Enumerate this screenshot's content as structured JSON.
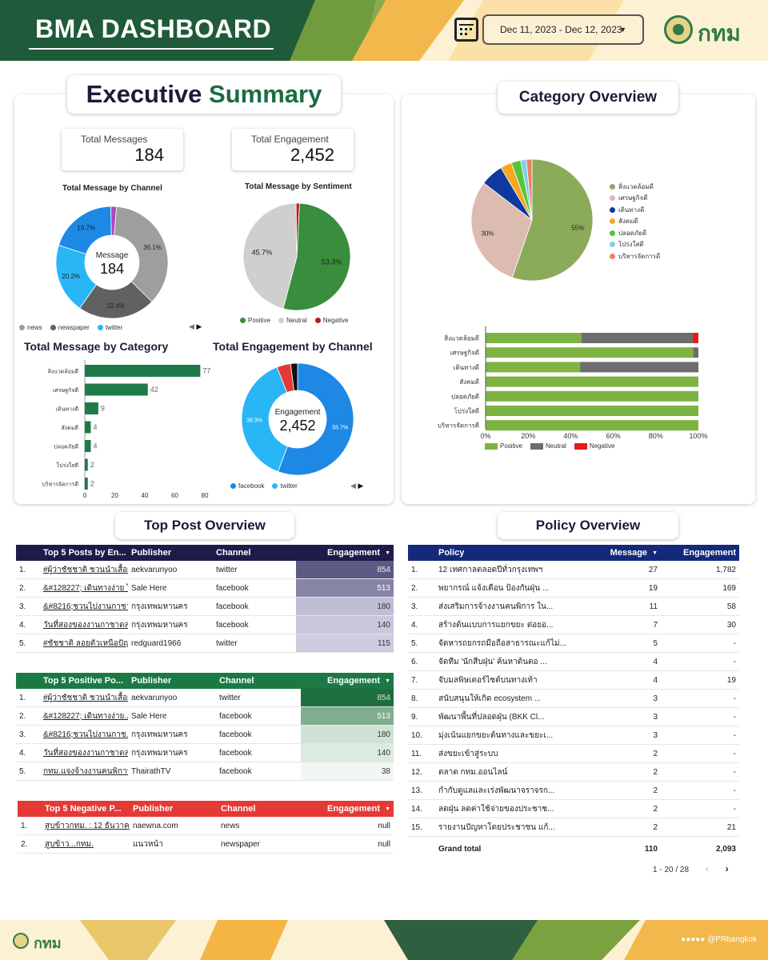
{
  "header": {
    "title": "BMA DASHBOARD",
    "date_range": "Dec 11, 2023 - Dec 12, 2023",
    "logo_text": "กทม"
  },
  "executive_summary": {
    "title_part1": "Executive",
    "title_part2": "Summary",
    "kpis": {
      "total_messages_label": "Total Messages",
      "total_messages_value": "184",
      "total_engagement_label": "Total Engagement",
      "total_engagement_value": "2,452"
    }
  },
  "category_overview": {
    "title": "Category Overview"
  },
  "top_post_overview": {
    "title": "Top Post Overview"
  },
  "policy_overview": {
    "title": "Policy Overview"
  },
  "colors": {
    "news": "#9e9e9e",
    "newspaper": "#616161",
    "twitter": "#29b6f6",
    "facebook": "#1e88e5",
    "positive": "#388e3c",
    "neutral": "#cfcfcf",
    "negative": "#b71c1c",
    "cat_bar": "#1f7a4a",
    "top_header": "#1e1b4b",
    "pos_header": "#1b7a44",
    "neg_header": "#e53935",
    "policy_header": "#14297a"
  },
  "chart_data": [
    {
      "id": "msg_by_channel",
      "type": "pie",
      "title": "Total Message by Channel",
      "center_label": "Message",
      "center_value": "184",
      "slices": [
        {
          "name": "news",
          "value": 36.1,
          "label": "36.1%",
          "color": "#9e9e9e"
        },
        {
          "name": "newspaper",
          "value": 22.4,
          "label": "22.4%",
          "color": "#616161"
        },
        {
          "name": "twitter",
          "value": 20.2,
          "label": "20.2%",
          "color": "#29b6f6"
        },
        {
          "name": "",
          "value": 19.7,
          "label": "19.7%",
          "color": "#1e88e5"
        },
        {
          "name": "",
          "value": 1.6,
          "label": "",
          "color": "#ab47bc"
        }
      ],
      "legend": [
        "news",
        "newspaper",
        "twitter"
      ]
    },
    {
      "id": "msg_by_sentiment",
      "type": "pie",
      "title": "Total Message by Sentiment",
      "slices": [
        {
          "name": "Positive",
          "value": 53.3,
          "label": "53.3%",
          "color": "#388e3c"
        },
        {
          "name": "Neutral",
          "value": 45.7,
          "label": "45.7%",
          "color": "#cfcfcf"
        },
        {
          "name": "Negative",
          "value": 1.0,
          "label": "",
          "color": "#b71c1c"
        }
      ],
      "legend": [
        "Positive",
        "Neutral",
        "Negative"
      ]
    },
    {
      "id": "msg_by_category",
      "type": "bar",
      "title": "Total Message by Category",
      "categories": [
        "สิ่งแวดล้อมดี",
        "เศรษฐกิจดี",
        "เดินทางดี",
        "สังคมดี",
        "ปลอดภัยดี",
        "โปร่งใสดี",
        "บริหารจัดการดี"
      ],
      "values": [
        77,
        42,
        9,
        4,
        4,
        2,
        2
      ],
      "xlim": [
        0,
        80
      ],
      "xticks": [
        0,
        20,
        40,
        60,
        80
      ]
    },
    {
      "id": "eng_by_channel",
      "type": "pie",
      "title": "Total Engagement by Channel",
      "center_label": "Engagement",
      "center_value": "2,452",
      "slices": [
        {
          "name": "facebook",
          "value": 55.7,
          "label": "55.7%",
          "color": "#1e88e5"
        },
        {
          "name": "twitter",
          "value": 38.3,
          "label": "38.3%",
          "color": "#29b6f6"
        },
        {
          "name": "",
          "value": 4.0,
          "label": "",
          "color": "#e53935"
        },
        {
          "name": "",
          "value": 2.0,
          "label": "",
          "color": "#111111"
        }
      ],
      "legend": [
        "facebook",
        "twitter"
      ]
    },
    {
      "id": "category_pie",
      "type": "pie",
      "slices": [
        {
          "name": "สิ่งแวดล้อมดี",
          "value": 55,
          "label": "55%",
          "color": "#8bab5a"
        },
        {
          "name": "เศรษฐกิจดี",
          "value": 30,
          "label": "30%",
          "color": "#dcbcb0"
        },
        {
          "name": "เดินทางดี",
          "value": 6,
          "label": "",
          "color": "#0d3a9c"
        },
        {
          "name": "สังคมดี",
          "value": 3,
          "label": "",
          "color": "#f5a623"
        },
        {
          "name": "ปลอดภัยดี",
          "value": 2.5,
          "label": "",
          "color": "#55c53a"
        },
        {
          "name": "โปร่งใสดี",
          "value": 1.5,
          "label": "",
          "color": "#7fd1e8"
        },
        {
          "name": "บริหารจัดการดี",
          "value": 1.5,
          "label": "",
          "color": "#f08060"
        }
      ]
    },
    {
      "id": "category_sentiment",
      "type": "bar",
      "stacked_percent": true,
      "categories": [
        "สิ่งแวดล้อมดี",
        "เศรษฐกิจดี",
        "เดินทางดี",
        "สังคมดี",
        "ปลอดภัยดี",
        "โปร่งใสดี",
        "บริหารจัดการดี"
      ],
      "series": [
        {
          "name": "Positive",
          "color": "#7cb342",
          "values": [
            45,
            97.6,
            44.4,
            100,
            100,
            100,
            100
          ]
        },
        {
          "name": "Neutral",
          "color": "#6d6d6d",
          "values": [
            52.4,
            2.4,
            55.6,
            0,
            0,
            0,
            0
          ]
        },
        {
          "name": "Negative",
          "color": "#e41a1c",
          "values": [
            2.6,
            0,
            0,
            0,
            0,
            0,
            0
          ]
        }
      ],
      "xticks": [
        "0%",
        "20%",
        "40%",
        "60%",
        "80%",
        "100%"
      ]
    }
  ],
  "top5_posts": {
    "headers": [
      "Top 5 Posts by En...",
      "Publisher",
      "Channel",
      "Engagement"
    ],
    "rows": [
      {
        "n": "1.",
        "post": "#ผู้ว่าชัชชาติ ชวนนำเสื้อผ้า...",
        "publisher": "aekvarunyoo",
        "channel": "twitter",
        "eng": "854"
      },
      {
        "n": "2.",
        "post": "&#128227; เดินทางง่าย ไ...",
        "publisher": "Sale Here",
        "channel": "facebook",
        "eng": "513"
      },
      {
        "n": "3.",
        "post": "&#8216;ชวนไปงานกาชา...",
        "publisher": "กรุงเทพมหานคร",
        "channel": "facebook",
        "eng": "180"
      },
      {
        "n": "4.",
        "post": "วันที่สองของงานกาชาดสวน...",
        "publisher": "กรุงเทพมหานคร",
        "channel": "facebook",
        "eng": "140"
      },
      {
        "n": "5.",
        "post": "#ชัชชาติ ลอยตัวเหนือปัญหาโพ...",
        "publisher": "redguard1966",
        "channel": "twitter",
        "eng": "115"
      }
    ]
  },
  "top5_positive": {
    "headers": [
      "Top 5 Positive Po...",
      "Publisher",
      "Channel",
      "Engagement"
    ],
    "rows": [
      {
        "n": "1.",
        "post": "#ผู้ว่าชัชชาติ ชวนนำเสื้อผ้...",
        "publisher": "aekvarunyoo",
        "channel": "twitter",
        "eng": "854"
      },
      {
        "n": "2.",
        "post": "&#128227; เดินทางง่าย...",
        "publisher": "Sale Here",
        "channel": "facebook",
        "eng": "513"
      },
      {
        "n": "3.",
        "post": "&#8216;ชวนไปงานกาช...",
        "publisher": "กรุงเทพมหานคร",
        "channel": "facebook",
        "eng": "180"
      },
      {
        "n": "4.",
        "post": "วันที่สองของงานกาชาดสว...",
        "publisher": "กรุงเทพมหานคร",
        "channel": "facebook",
        "eng": "140"
      },
      {
        "n": "5.",
        "post": "กทม.แจงจ้างงานคนพิการ ...",
        "publisher": "ThairathTV",
        "channel": "facebook",
        "eng": "38"
      }
    ]
  },
  "top5_negative": {
    "headers": [
      "Top 5 Negative P...",
      "Publisher",
      "Channel",
      "Engagement"
    ],
    "rows": [
      {
        "n": "1.",
        "post": "สูบข้าวกทม. : 12 ธันวาคม...",
        "publisher": "naewna.com",
        "channel": "news",
        "eng": "null"
      },
      {
        "n": "2.",
        "post": "สูบข้าว...กทม.",
        "publisher": "แนวหน้า",
        "channel": "newspaper",
        "eng": "null"
      }
    ]
  },
  "policy_table": {
    "headers": [
      "Policy",
      "Message",
      "Engagement"
    ],
    "rows": [
      {
        "n": "1.",
        "policy": "12 เทศกาลตลอดปีทั่วกรุงเทพฯ",
        "msg": "27",
        "eng": "1,782"
      },
      {
        "n": "2.",
        "policy": "พยากรณ์ แจ้งเตือน ป้องกันฝุ่น ...",
        "msg": "19",
        "eng": "169"
      },
      {
        "n": "3.",
        "policy": "ส่งเสริมการจ้างงานคนพิการ ใน...",
        "msg": "11",
        "eng": "58"
      },
      {
        "n": "4.",
        "policy": "สร้างต้นแบบการแยกขยะ ต่อยอ...",
        "msg": "7",
        "eng": "30"
      },
      {
        "n": "5.",
        "policy": "จัดหารถยกรถมือถือสาธารณะแก้ไม่...",
        "msg": "5",
        "eng": "-"
      },
      {
        "n": "6.",
        "policy": "จัดทีม 'นักสืบฝุ่น' ค้นหาต้นตอ ...",
        "msg": "4",
        "eng": "-"
      },
      {
        "n": "7.",
        "policy": "จับมลพิษเตอร์ไซต์บนทางเท้า",
        "msg": "4",
        "eng": "19"
      },
      {
        "n": "8.",
        "policy": "สนับสนุนให้เกิด ecosystem ...",
        "msg": "3",
        "eng": "-"
      },
      {
        "n": "9.",
        "policy": "พัฒนาพื้นที่ปลอดฝุ่น (BKK Cl...",
        "msg": "3",
        "eng": "-"
      },
      {
        "n": "10.",
        "policy": "มุ่งเน้นแยกขยะต้นทางและขยะเ...",
        "msg": "3",
        "eng": "-"
      },
      {
        "n": "11.",
        "policy": "ส่งขยะเข้าสู่ระบบ",
        "msg": "2",
        "eng": "-"
      },
      {
        "n": "12.",
        "policy": "ตลาด กทม.ออนไลน์",
        "msg": "2",
        "eng": "-"
      },
      {
        "n": "13.",
        "policy": "กำกับดูแลและเร่งพัฒนาจราจรก...",
        "msg": "2",
        "eng": "-"
      },
      {
        "n": "14.",
        "policy": "ลดฝุ่น ลดค่าใช้จ่ายของประชาช...",
        "msg": "2",
        "eng": "-"
      },
      {
        "n": "15.",
        "policy": "รายงานปัญหาโดยประชาชน แก้...",
        "msg": "2",
        "eng": "21"
      }
    ],
    "total_label": "Grand total",
    "total_msg": "110",
    "total_eng": "2,093",
    "pagination": "1 - 20 / 28"
  },
  "footer": {
    "logo_text": "กทม",
    "social_handle": "@PRbangkok"
  }
}
